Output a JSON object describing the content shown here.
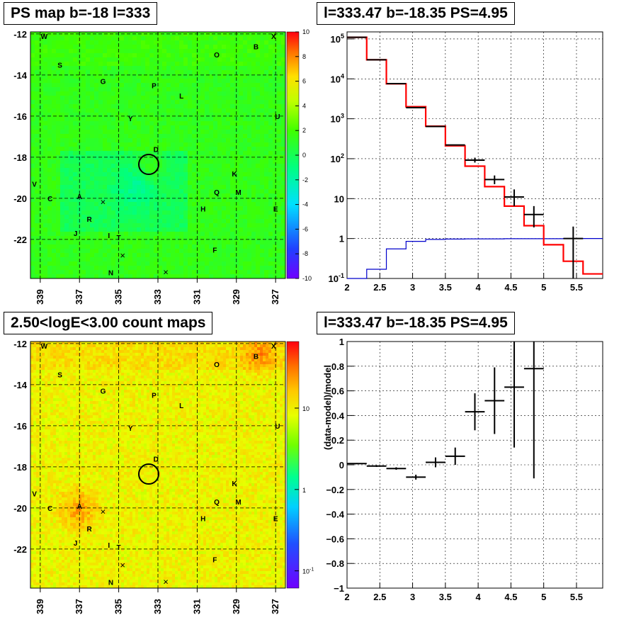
{
  "panels": {
    "map_title": "PS map b=-18 l=333",
    "spec_title": "l=333.47 b=-18.35 PS=4.95",
    "count_title": "2.50<logE<3.00 count maps",
    "resid_title": "l=333.47 b=-18.35 PS=4.95"
  },
  "colors": {
    "model_line": "#ff0000",
    "background_line": "#0000cc",
    "data_points": "#000000",
    "grid": "#000000"
  },
  "chart_data": [
    {
      "type": "heatmap",
      "title": "PS map b=-18 l=333",
      "x_ticks": [
        "339",
        "337",
        "335",
        "333",
        "331",
        "329",
        "327"
      ],
      "y_ticks": [
        "-12",
        "-14",
        "-16",
        "-18",
        "-20",
        "-22"
      ],
      "xlim": [
        339.5,
        326.5
      ],
      "ylim": [
        -23.9,
        -11.9
      ],
      "colorbar_ticks": [
        "10",
        "8",
        "6",
        "4",
        "2",
        "0",
        "-2",
        "-4",
        "-6",
        "-8",
        "-10"
      ],
      "colorbar_range": [
        -10,
        10
      ],
      "grid": true,
      "source_circle": {
        "l": 333.47,
        "b": -18.35
      },
      "labels": [
        {
          "t": "W",
          "l": 338.8,
          "b": -12.1
        },
        {
          "t": "X",
          "l": 327.1,
          "b": -12.1
        },
        {
          "t": "B",
          "l": 328.0,
          "b": -12.6
        },
        {
          "t": "O",
          "l": 330.0,
          "b": -13.0
        },
        {
          "t": "S",
          "l": 338.0,
          "b": -13.5
        },
        {
          "t": "G",
          "l": 335.8,
          "b": -14.3
        },
        {
          "t": "P",
          "l": 333.2,
          "b": -14.5
        },
        {
          "t": "L",
          "l": 331.8,
          "b": -15.0
        },
        {
          "t": "U",
          "l": 326.9,
          "b": -16.0
        },
        {
          "t": "Y",
          "l": 334.4,
          "b": -16.1
        },
        {
          "t": "D",
          "l": 333.1,
          "b": -17.6
        },
        {
          "t": "K",
          "l": 329.1,
          "b": -18.8
        },
        {
          "t": "V",
          "l": 339.3,
          "b": -19.3
        },
        {
          "t": "Q",
          "l": 330.0,
          "b": -19.7
        },
        {
          "t": "M",
          "l": 328.9,
          "b": -19.7
        },
        {
          "t": "C",
          "l": 338.5,
          "b": -20.0
        },
        {
          "t": "A",
          "l": 337.0,
          "b": -19.9
        },
        {
          "t": "E",
          "l": 327.0,
          "b": -20.5
        },
        {
          "t": "H",
          "l": 330.7,
          "b": -20.5
        },
        {
          "t": "R",
          "l": 336.5,
          "b": -21.0
        },
        {
          "t": "I",
          "l": 335.5,
          "b": -21.8
        },
        {
          "t": "T",
          "l": 335.0,
          "b": -21.9
        },
        {
          "t": "J",
          "l": 337.2,
          "b": -21.7
        },
        {
          "t": "F",
          "l": 330.1,
          "b": -22.5
        },
        {
          "t": "N",
          "l": 335.4,
          "b": -23.6
        }
      ],
      "crosses": [
        {
          "l": 335.8,
          "b": -20.2
        },
        {
          "l": 334.8,
          "b": -22.8
        },
        {
          "l": 332.6,
          "b": -23.6
        }
      ]
    },
    {
      "type": "line",
      "title": "l=333.47 b=-18.35 PS=4.95",
      "xlim": [
        2,
        5.9
      ],
      "ylim": [
        0.1,
        150000
      ],
      "yscale": "log",
      "x_ticks": [
        "2",
        "2.5",
        "3",
        "3.5",
        "4",
        "4.5",
        "5",
        "5.5"
      ],
      "y_ticks": [
        "10^-1",
        "1",
        "10",
        "10^2",
        "10^3",
        "10^4",
        "10^5"
      ],
      "grid": true,
      "model_steps": {
        "edges": [
          2.0,
          2.3,
          2.6,
          2.9,
          3.2,
          3.5,
          3.8,
          4.1,
          4.4,
          4.7,
          5.0,
          5.3,
          5.6,
          5.9
        ],
        "values": [
          110000,
          30000,
          7500,
          2000,
          650,
          210,
          65,
          20,
          6.5,
          2.1,
          0.7,
          0.27,
          0.13
        ]
      },
      "background_steps": {
        "edges": [
          2.0,
          2.3,
          2.6,
          2.9,
          3.2,
          3.5,
          3.8,
          4.1,
          4.4,
          4.7,
          5.0,
          5.3,
          5.6,
          5.9
        ],
        "values": [
          0.1,
          0.17,
          0.55,
          0.85,
          0.95,
          0.97,
          0.98,
          0.98,
          0.99,
          0.99,
          0.99,
          1.0,
          1.0
        ]
      },
      "data_points": [
        {
          "x": 2.15,
          "y": 110000
        },
        {
          "x": 2.45,
          "y": 30000
        },
        {
          "x": 2.75,
          "y": 7600
        },
        {
          "x": 3.05,
          "y": 1900
        },
        {
          "x": 3.35,
          "y": 640
        },
        {
          "x": 3.65,
          "y": 220
        },
        {
          "x": 3.95,
          "y": 92,
          "ylo": 80,
          "yhi": 106
        },
        {
          "x": 4.25,
          "y": 30,
          "ylo": 23,
          "yhi": 38
        },
        {
          "x": 4.55,
          "y": 11,
          "ylo": 6.5,
          "yhi": 17
        },
        {
          "x": 4.85,
          "y": 4,
          "ylo": 1.9,
          "yhi": 6.5
        },
        {
          "x": 5.45,
          "y": 1,
          "ylo": 0.1,
          "yhi": 2
        }
      ]
    },
    {
      "type": "heatmap",
      "title": "2.50<logE<3.00 count maps",
      "x_ticks": [
        "339",
        "337",
        "335",
        "333",
        "331",
        "329",
        "327"
      ],
      "y_ticks": [
        "-12",
        "-14",
        "-16",
        "-18",
        "-20",
        "-22"
      ],
      "xlim": [
        339.5,
        326.5
      ],
      "ylim": [
        -23.9,
        -11.9
      ],
      "colorbar_ticks": [
        "10",
        "1",
        "10^-1"
      ],
      "colorbar_scale": "log",
      "grid": true,
      "source_circle": {
        "l": 333.47,
        "b": -18.35
      }
    },
    {
      "type": "scatter",
      "title": "l=333.47 b=-18.35 PS=4.95",
      "ylabel": "(data-model)/model",
      "xlim": [
        2,
        5.9
      ],
      "ylim": [
        -1,
        1
      ],
      "x_ticks": [
        "2",
        "2.5",
        "3",
        "3.5",
        "4",
        "4.5",
        "5",
        "5.5"
      ],
      "y_ticks": [
        "1",
        "0.8",
        "0.6",
        "0.4",
        "0.2",
        "0",
        "-0.2",
        "-0.4",
        "-0.6",
        "-0.8",
        "-1"
      ],
      "grid": true,
      "points": [
        {
          "x": 2.15,
          "y": 0.01,
          "err": 0.005,
          "xerr": 0.15
        },
        {
          "x": 2.45,
          "y": -0.01,
          "err": 0.007,
          "xerr": 0.15
        },
        {
          "x": 2.75,
          "y": -0.03,
          "err": 0.01,
          "xerr": 0.15
        },
        {
          "x": 3.05,
          "y": -0.1,
          "err": 0.02,
          "xerr": 0.15
        },
        {
          "x": 3.35,
          "y": 0.02,
          "err": 0.04,
          "xerr": 0.15
        },
        {
          "x": 3.65,
          "y": 0.07,
          "err": 0.07,
          "xerr": 0.15
        },
        {
          "x": 3.95,
          "y": 0.43,
          "err": 0.15,
          "xerr": 0.15
        },
        {
          "x": 4.25,
          "y": 0.52,
          "err": 0.27,
          "xerr": 0.15
        },
        {
          "x": 4.55,
          "y": 0.63,
          "err": 0.49,
          "xerr": 0.15
        },
        {
          "x": 4.85,
          "y": 0.78,
          "err": 0.89,
          "xerr": 0.15
        }
      ]
    }
  ]
}
